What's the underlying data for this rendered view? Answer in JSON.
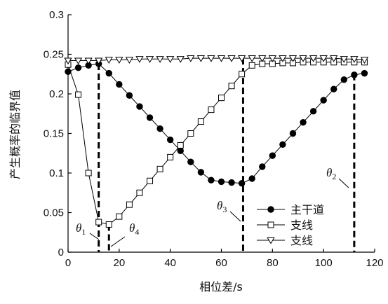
{
  "chart_data": {
    "type": "line",
    "xlabel": "相位差/s",
    "ylabel": "产生概率的临界值",
    "xlim": [
      0,
      120
    ],
    "ylim": [
      0,
      0.3
    ],
    "xticks": [
      0,
      20,
      40,
      60,
      80,
      100,
      120
    ],
    "yticks": [
      0,
      0.05,
      0.1,
      0.15,
      0.2,
      0.25,
      0.3
    ],
    "xtick_labels": [
      "0",
      "20",
      "40",
      "60",
      "80",
      "100",
      "120"
    ],
    "ytick_labels": [
      "0",
      "0.05",
      "0.1",
      "0.15",
      "0.2",
      "0.25",
      "0.3"
    ],
    "grid": false,
    "legend_position": "bottom-right",
    "series": [
      {
        "name": "主干道",
        "marker": "filled-circle",
        "x": [
          0,
          4,
          8,
          12,
          16,
          20,
          24,
          28,
          32,
          36,
          40,
          44,
          48,
          52,
          56,
          60,
          64,
          68,
          72,
          76,
          80,
          84,
          88,
          92,
          96,
          100,
          104,
          108,
          112,
          116
        ],
        "y": [
          0.228,
          0.233,
          0.236,
          0.238,
          0.226,
          0.212,
          0.198,
          0.184,
          0.17,
          0.156,
          0.142,
          0.128,
          0.114,
          0.101,
          0.091,
          0.089,
          0.088,
          0.087,
          0.093,
          0.108,
          0.122,
          0.136,
          0.15,
          0.164,
          0.178,
          0.192,
          0.206,
          0.218,
          0.224,
          0.226
        ]
      },
      {
        "name": "支线",
        "marker": "open-square",
        "x": [
          0,
          4,
          8,
          12,
          16,
          20,
          24,
          28,
          32,
          36,
          40,
          44,
          48,
          52,
          56,
          60,
          64,
          68,
          72,
          76,
          80,
          84,
          88,
          92,
          96,
          100,
          104,
          108,
          112,
          116
        ],
        "y": [
          0.237,
          0.199,
          0.1,
          0.038,
          0.035,
          0.045,
          0.06,
          0.075,
          0.09,
          0.105,
          0.12,
          0.135,
          0.15,
          0.165,
          0.18,
          0.195,
          0.21,
          0.225,
          0.236,
          0.238,
          0.238,
          0.239,
          0.239,
          0.24,
          0.24,
          0.24,
          0.24,
          0.24,
          0.24,
          0.24
        ]
      },
      {
        "name": "支线",
        "marker": "open-triangle-down",
        "x": [
          0,
          4,
          8,
          12,
          16,
          20,
          24,
          28,
          32,
          36,
          40,
          44,
          48,
          52,
          56,
          60,
          64,
          68,
          72,
          76,
          80,
          84,
          88,
          92,
          96,
          100,
          104,
          108,
          112,
          116
        ],
        "y": [
          0.242,
          0.242,
          0.242,
          0.242,
          0.243,
          0.243,
          0.243,
          0.244,
          0.244,
          0.244,
          0.244,
          0.244,
          0.245,
          0.245,
          0.245,
          0.245,
          0.245,
          0.245,
          0.245,
          0.245,
          0.245,
          0.245,
          0.245,
          0.245,
          0.245,
          0.245,
          0.245,
          0.244,
          0.244,
          0.243
        ]
      }
    ],
    "reference_lines": [
      {
        "x": 12,
        "y": 0.238,
        "label": "θ",
        "sub": "1"
      },
      {
        "x": 16,
        "y": 0.035,
        "label": "θ",
        "sub": "4"
      },
      {
        "x": 68.5,
        "y": 0.245,
        "label": "θ",
        "sub": "3"
      },
      {
        "x": 112,
        "y": 0.225,
        "label": "θ",
        "sub": "2"
      }
    ]
  }
}
